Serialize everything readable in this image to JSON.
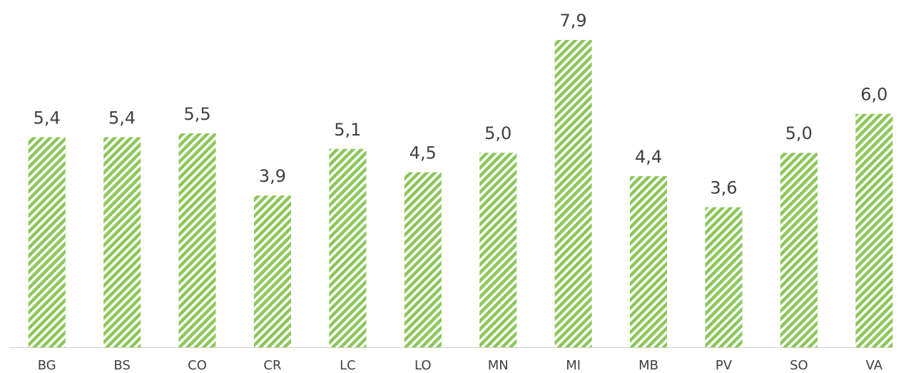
{
  "chart_data": {
    "type": "bar",
    "categories": [
      "BG",
      "BS",
      "CO",
      "CR",
      "LC",
      "LO",
      "MN",
      "MI",
      "MB",
      "PV",
      "SO",
      "VA"
    ],
    "values": [
      5.4,
      5.4,
      5.5,
      3.9,
      5.1,
      4.5,
      5.0,
      7.9,
      4.4,
      3.6,
      5.0,
      6.0
    ],
    "value_labels": [
      "5,4",
      "5,4",
      "5,5",
      "3,9",
      "5,1",
      "4,5",
      "5,0",
      "7,9",
      "4,4",
      "3,6",
      "5,0",
      "6,0"
    ],
    "color": "#8cc65a"
  }
}
